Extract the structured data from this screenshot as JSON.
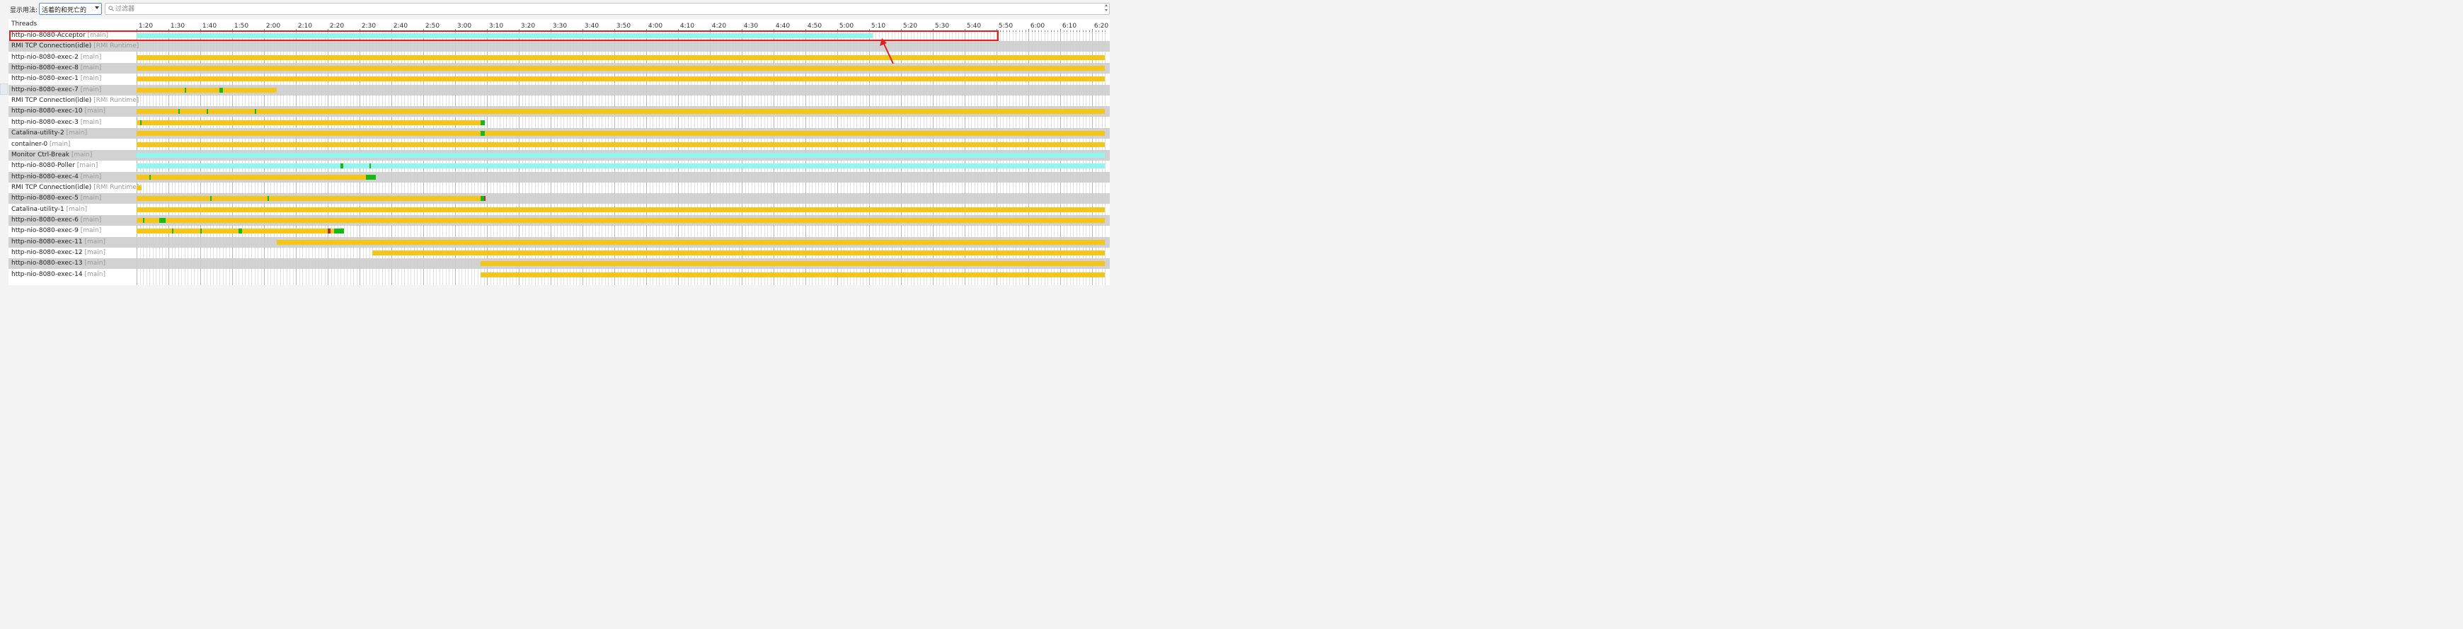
{
  "toolbar": {
    "display_label": "显示用法:",
    "mode_select_value": "活着的和死亡的",
    "filter_placeholder": "过滤器"
  },
  "colors": {
    "running": "#f5c518",
    "waiting": "#93f5f0",
    "blocked": "#18b818",
    "dead": "#b03030",
    "highlight": "#e02020"
  },
  "timeline": {
    "header": "Threads",
    "axis_labels": [
      "1:20",
      "1:30",
      "1:40",
      "1:50",
      "2:00",
      "2:10",
      "2:20",
      "2:30",
      "2:40",
      "2:50",
      "3:00",
      "3:10",
      "3:20",
      "3:30",
      "3:40",
      "3:50",
      "4:00",
      "4:10",
      "4:20",
      "4:30",
      "4:40",
      "4:50",
      "5:00",
      "5:10",
      "5:20",
      "5:30",
      "5:40",
      "5:50",
      "6:00",
      "6:10",
      "6:20"
    ]
  },
  "threads": [
    {
      "name": "http-nio-8080-Acceptor",
      "group": "[main]",
      "bars": [
        {
          "from": "1:19",
          "to": "5:11",
          "state": "waiting"
        }
      ],
      "marks": []
    },
    {
      "name": "RMI TCP Connection(idle)",
      "group": "[RMI Runtime]",
      "bars": [],
      "marks": []
    },
    {
      "name": "http-nio-8080-exec-2",
      "group": "[main]",
      "bars": [
        {
          "from": "1:19",
          "to": "6:24",
          "state": "running"
        }
      ],
      "marks": []
    },
    {
      "name": "http-nio-8080-exec-8",
      "group": "[main]",
      "bars": [
        {
          "from": "1:19",
          "to": "6:24",
          "state": "running"
        }
      ],
      "marks": []
    },
    {
      "name": "http-nio-8080-exec-1",
      "group": "[main]",
      "bars": [
        {
          "from": "1:19",
          "to": "6:24",
          "state": "running"
        }
      ],
      "marks": []
    },
    {
      "name": "http-nio-8080-exec-7",
      "group": "[main]",
      "bars": [
        {
          "from": "1:19",
          "to": "2:04",
          "state": "running"
        }
      ],
      "marks": [
        {
          "at": "1:35",
          "len": 0.3,
          "state": "blocked"
        },
        {
          "at": "1:46",
          "len": 1.2,
          "state": "blocked"
        }
      ]
    },
    {
      "name": "RMI TCP Connection(idle)",
      "group": "[RMI Runtime]",
      "bars": [],
      "marks": []
    },
    {
      "name": "http-nio-8080-exec-10",
      "group": "[main]",
      "bars": [
        {
          "from": "1:19",
          "to": "6:24",
          "state": "running"
        }
      ],
      "marks": [
        {
          "at": "1:33",
          "len": 0.5,
          "state": "blocked"
        },
        {
          "at": "1:42",
          "len": 0.3,
          "state": "blocked"
        },
        {
          "at": "1:57",
          "len": 0.3,
          "state": "blocked"
        }
      ]
    },
    {
      "name": "http-nio-8080-exec-3",
      "group": "[main]",
      "bars": [
        {
          "from": "1:19",
          "to": "3:08",
          "state": "running"
        }
      ],
      "marks": [
        {
          "at": "1:21",
          "len": 0.3,
          "state": "blocked"
        },
        {
          "at": "3:08",
          "len": 1.4,
          "state": "blocked"
        }
      ]
    },
    {
      "name": "Catalina-utility-2",
      "group": "[main]",
      "bars": [
        {
          "from": "1:19",
          "to": "6:24",
          "state": "running"
        }
      ],
      "marks": [
        {
          "at": "3:08",
          "len": 1.4,
          "state": "blocked"
        }
      ]
    },
    {
      "name": "container-0",
      "group": "[main]",
      "bars": [
        {
          "from": "1:19",
          "to": "6:24",
          "state": "running"
        }
      ],
      "marks": []
    },
    {
      "name": "Monitor Ctrl-Break",
      "group": "[main]",
      "bars": [
        {
          "from": "1:19",
          "to": "6:24",
          "state": "waiting"
        }
      ],
      "marks": []
    },
    {
      "name": "http-nio-8080-Poller",
      "group": "[main]",
      "bars": [
        {
          "from": "1:19",
          "to": "6:24",
          "state": "waiting"
        }
      ],
      "marks": [
        {
          "at": "2:24",
          "len": 0.8,
          "state": "blocked"
        },
        {
          "at": "2:33",
          "len": 0.6,
          "state": "blocked"
        }
      ]
    },
    {
      "name": "http-nio-8080-exec-4",
      "group": "[main]",
      "bars": [
        {
          "from": "1:19",
          "to": "2:35",
          "state": "running"
        }
      ],
      "marks": [
        {
          "at": "1:24",
          "len": 0.3,
          "state": "blocked"
        },
        {
          "at": "2:32",
          "len": 3.2,
          "state": "blocked"
        }
      ]
    },
    {
      "name": "RMI TCP Connection(idle)",
      "group": "[RMI Runtime]",
      "bars": [
        {
          "from": "1:19",
          "to": "1:21.5",
          "state": "running"
        }
      ],
      "marks": []
    },
    {
      "name": "http-nio-8080-exec-5",
      "group": "[main]",
      "bars": [
        {
          "from": "1:19",
          "to": "3:09",
          "state": "running"
        }
      ],
      "marks": [
        {
          "at": "1:43",
          "len": 0.4,
          "state": "blocked"
        },
        {
          "at": "2:01",
          "len": 0.4,
          "state": "blocked"
        },
        {
          "at": "3:08",
          "len": 1,
          "state": "blocked"
        },
        {
          "at": "3:09",
          "len": 0.4,
          "state": "dead"
        }
      ]
    },
    {
      "name": "Catalina-utility-1",
      "group": "[main]",
      "bars": [
        {
          "from": "1:19",
          "to": "6:24",
          "state": "running"
        }
      ],
      "marks": []
    },
    {
      "name": "http-nio-8080-exec-6",
      "group": "[main]",
      "bars": [
        {
          "from": "1:19",
          "to": "6:24",
          "state": "running"
        }
      ],
      "marks": [
        {
          "at": "1:22",
          "len": 0.4,
          "state": "blocked"
        },
        {
          "at": "1:27",
          "len": 2,
          "state": "blocked"
        }
      ]
    },
    {
      "name": "http-nio-8080-exec-9",
      "group": "[main]",
      "bars": [
        {
          "from": "1:19",
          "to": "2:25",
          "state": "running"
        }
      ],
      "marks": [
        {
          "at": "1:31",
          "len": 0.3,
          "state": "blocked"
        },
        {
          "at": "1:40",
          "len": 0.3,
          "state": "blocked"
        },
        {
          "at": "1:52",
          "len": 1,
          "state": "blocked"
        },
        {
          "at": "2:20",
          "len": 0.8,
          "state": "dead"
        },
        {
          "at": "2:22",
          "len": 3,
          "state": "blocked"
        }
      ]
    },
    {
      "name": "http-nio-8080-exec-11",
      "group": "[main]",
      "bars": [
        {
          "from": "2:04",
          "to": "6:24",
          "state": "running"
        }
      ],
      "marks": []
    },
    {
      "name": "http-nio-8080-exec-12",
      "group": "[main]",
      "bars": [
        {
          "from": "2:34",
          "to": "6:24",
          "state": "running"
        }
      ],
      "marks": []
    },
    {
      "name": "http-nio-8080-exec-13",
      "group": "[main]",
      "bars": [
        {
          "from": "3:08",
          "to": "6:24",
          "state": "running"
        }
      ],
      "marks": []
    },
    {
      "name": "http-nio-8080-exec-14",
      "group": "[main]",
      "bars": [
        {
          "from": "3:08",
          "to": "6:24",
          "state": "running"
        }
      ],
      "marks": []
    }
  ]
}
